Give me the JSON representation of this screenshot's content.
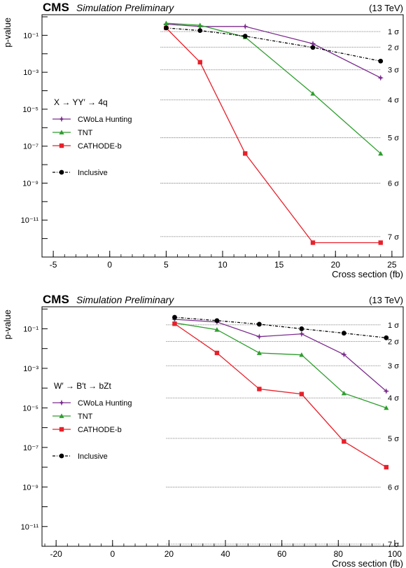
{
  "charts": [
    {
      "cms_label": "CMS",
      "subtitle": "Simulation Preliminary",
      "energy": "(13 TeV)",
      "xlabel": "Cross section (fb)",
      "ylabel": "p-value",
      "legend_title": "X → YY′ → 4q",
      "x_ticks": [
        "-5",
        "0",
        "5",
        "10",
        "15",
        "20",
        "25"
      ],
      "y_ticks": [
        "10⁻¹",
        "10⁻³",
        "10⁻⁵",
        "10⁻⁷",
        "10⁻⁹",
        "10⁻¹¹"
      ],
      "sigma_labels": [
        "1 σ",
        "2 σ",
        "3 σ",
        "4 σ",
        "5 σ",
        "6 σ",
        "7 σ"
      ]
    },
    {
      "cms_label": "CMS",
      "subtitle": "Simulation Preliminary",
      "energy": "(13 TeV)",
      "xlabel": "Cross section (fb)",
      "ylabel": "p-value",
      "legend_title": "W′ → B′t → bZt",
      "x_ticks": [
        "-20",
        "0",
        "20",
        "40",
        "60",
        "80",
        "100"
      ],
      "y_ticks": [
        "10⁻¹",
        "10⁻³",
        "10⁻⁵",
        "10⁻⁷",
        "10⁻⁹",
        "10⁻¹¹"
      ],
      "sigma_labels": [
        "1 σ",
        "2 σ",
        "3 σ",
        "4 σ",
        "5 σ",
        "6 σ",
        "7 σ"
      ]
    }
  ],
  "chart_data": [
    {
      "type": "line",
      "y_scale": "log",
      "xlim": [
        -6,
        26
      ],
      "ylim": [
        1e-13,
        1.3
      ],
      "xlabel": "Cross section (fb)",
      "ylabel": "p-value",
      "legend_placement": "left-middle",
      "sigma_pvalues": [
        0.1587,
        0.02275,
        0.00135,
        3.17e-05,
        2.87e-07,
        9.87e-10,
        1.28e-12
      ],
      "series": [
        {
          "name": "CWoLa Hunting",
          "color": "#7b2d8e",
          "marker": "star",
          "x": [
            5,
            8,
            12,
            18,
            24
          ],
          "y": [
            0.4,
            0.3,
            0.3,
            0.035,
            0.0005
          ]
        },
        {
          "name": "TNT",
          "color": "#2e9e2e",
          "marker": "triangle",
          "x": [
            5,
            8,
            12,
            18,
            24
          ],
          "y": [
            0.45,
            0.35,
            0.08,
            7e-05,
            4e-08
          ]
        },
        {
          "name": "CATHODE-b",
          "color": "#e8202a",
          "marker": "square",
          "x": [
            5,
            8,
            12,
            18,
            24
          ],
          "y": [
            0.25,
            0.0035,
            4e-08,
            6e-13,
            6e-13
          ]
        },
        {
          "name": "Inclusive",
          "color": "#000000",
          "marker": "circle",
          "dashed": true,
          "x": [
            5,
            8,
            12,
            18,
            24
          ],
          "y": [
            0.25,
            0.18,
            0.09,
            0.022,
            0.004
          ]
        }
      ]
    },
    {
      "type": "line",
      "y_scale": "log",
      "xlim": [
        -25,
        103
      ],
      "ylim": [
        1e-12,
        1.3
      ],
      "xlabel": "Cross section (fb)",
      "ylabel": "p-value",
      "legend_placement": "left-middle",
      "sigma_pvalues": [
        0.1587,
        0.02275,
        0.00135,
        3.17e-05,
        2.87e-07,
        9.87e-10,
        1.28e-12
      ],
      "series": [
        {
          "name": "CWoLa Hunting",
          "color": "#7b2d8e",
          "marker": "star",
          "x": [
            22,
            37,
            52,
            67,
            82,
            97
          ],
          "y": [
            0.3,
            0.22,
            0.04,
            0.055,
            0.005,
            7e-05
          ]
        },
        {
          "name": "TNT",
          "color": "#2e9e2e",
          "marker": "triangle",
          "x": [
            22,
            37,
            52,
            67,
            82,
            97
          ],
          "y": [
            0.2,
            0.09,
            0.006,
            0.0048,
            5.5e-05,
            1e-05
          ]
        },
        {
          "name": "CATHODE-b",
          "color": "#e8202a",
          "marker": "square",
          "x": [
            22,
            37,
            52,
            67,
            82,
            97
          ],
          "y": [
            0.18,
            0.006,
            9e-05,
            5e-05,
            2e-07,
            1e-08
          ]
        },
        {
          "name": "Inclusive",
          "color": "#000000",
          "marker": "circle",
          "dashed": true,
          "x": [
            22,
            37,
            52,
            67,
            82,
            97
          ],
          "y": [
            0.38,
            0.26,
            0.17,
            0.1,
            0.06,
            0.035
          ]
        }
      ]
    }
  ]
}
